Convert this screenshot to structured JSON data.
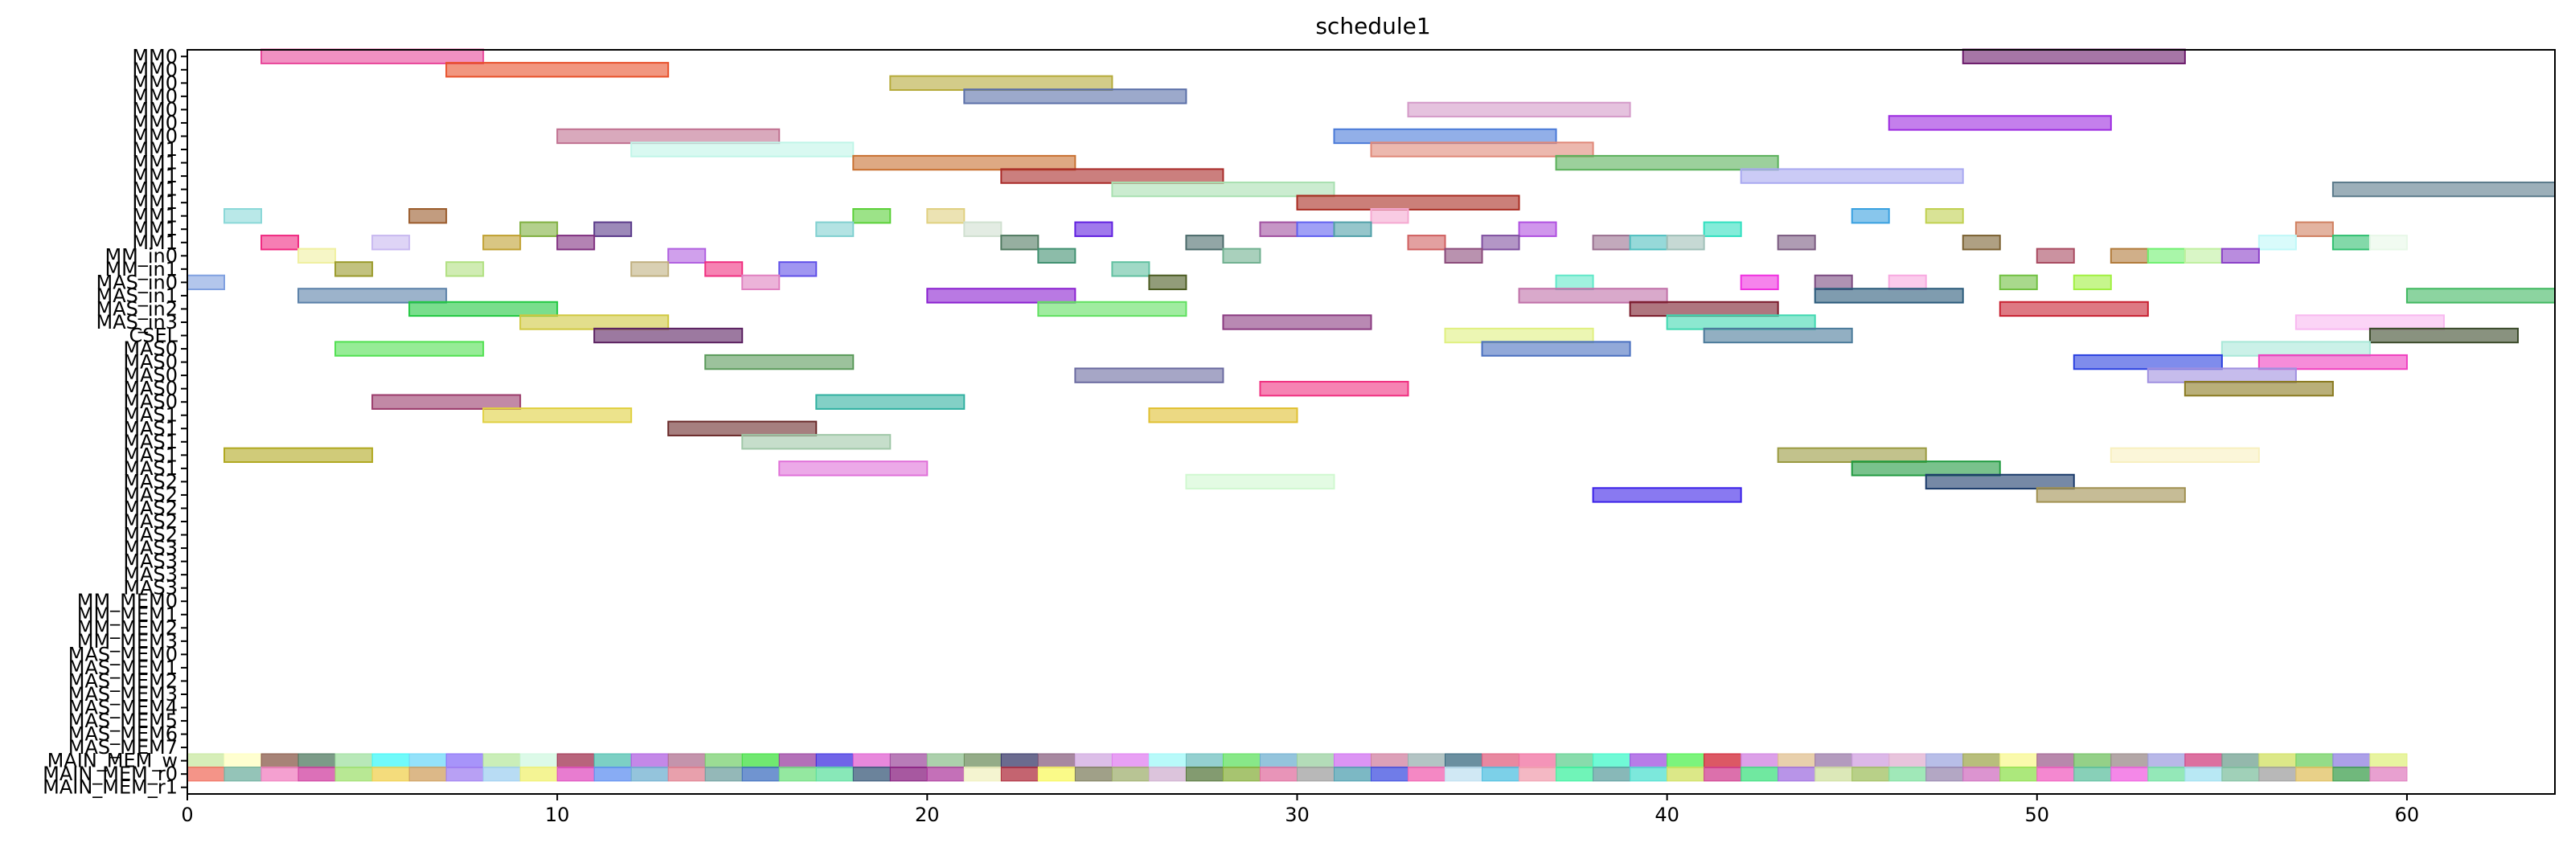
{
  "chart_data": {
    "type": "gantt",
    "title": "schedule1",
    "xlim": [
      0,
      64
    ],
    "x_ticks": [
      0,
      10,
      20,
      30,
      40,
      50,
      60
    ],
    "grid": false,
    "legend": "none",
    "rows": [
      "MM0",
      "MM0",
      "MM0",
      "MM0",
      "MM0",
      "MM0",
      "MM0",
      "MM1",
      "MM1",
      "MM1",
      "MM1",
      "MM1",
      "MM1",
      "MM1",
      "MM1",
      "MM_in0",
      "MM_in1",
      "MAS_in0",
      "MAS_in1",
      "MAS_in2",
      "MAS_in3",
      "CSEL",
      "MAS0",
      "MAS0",
      "MAS0",
      "MAS0",
      "MAS0",
      "MAS1",
      "MAS1",
      "MAS1",
      "MAS1",
      "MAS1",
      "MAS2",
      "MAS2",
      "MAS2",
      "MAS2",
      "MAS2",
      "MAS3",
      "MAS3",
      "MAS3",
      "MAS3",
      "MM_MEM0",
      "MM_MEM1",
      "MM_MEM2",
      "MM_MEM3",
      "MAS_MEM0",
      "MAS_MEM1",
      "MAS_MEM2",
      "MAS_MEM3",
      "MAS_MEM4",
      "MAS_MEM5",
      "MAS_MEM6",
      "MAS_MEM7",
      "MAIN_MEM_w",
      "MAIN_MEM_r0",
      "MAIN_MEM_r1"
    ],
    "bars": [
      {
        "row": 0,
        "start": 2,
        "end": 8,
        "color": "#e8479a"
      },
      {
        "row": 0,
        "start": 48,
        "end": 54,
        "color": "#6b1a6b"
      },
      {
        "row": 1,
        "start": 7,
        "end": 13,
        "color": "#e8502a"
      },
      {
        "row": 2,
        "start": 19,
        "end": 25,
        "color": "#b5aa3a"
      },
      {
        "row": 3,
        "start": 21,
        "end": 27,
        "color": "#5a6fa8"
      },
      {
        "row": 4,
        "start": 33,
        "end": 39,
        "color": "#d49ac8"
      },
      {
        "row": 5,
        "start": 46,
        "end": 52,
        "color": "#9c2ae0"
      },
      {
        "row": 6,
        "start": 10,
        "end": 16,
        "color": "#c07090"
      },
      {
        "row": 6,
        "start": 31,
        "end": 37,
        "color": "#4a7ad8"
      },
      {
        "row": 7,
        "start": 12,
        "end": 18,
        "color": "#c0f5e8"
      },
      {
        "row": 7,
        "start": 32,
        "end": 38,
        "color": "#e08878"
      },
      {
        "row": 8,
        "start": 18,
        "end": 24,
        "color": "#c87030"
      },
      {
        "row": 8,
        "start": 37,
        "end": 43,
        "color": "#5ab05a"
      },
      {
        "row": 9,
        "start": 22,
        "end": 28,
        "color": "#a82a28"
      },
      {
        "row": 9,
        "start": 42,
        "end": 48,
        "color": "#a8a8f0"
      },
      {
        "row": 10,
        "start": 25,
        "end": 31,
        "color": "#a8e0b0"
      },
      {
        "row": 10,
        "start": 58,
        "end": 64,
        "color": "#5a7a8a"
      },
      {
        "row": 11,
        "start": 30,
        "end": 36,
        "color": "#a82a20"
      },
      {
        "row": 12,
        "start": 1,
        "end": 2,
        "color": "#8ad8d8"
      },
      {
        "row": 12,
        "start": 6,
        "end": 7,
        "color": "#9a5a2a"
      },
      {
        "row": 12,
        "start": 18,
        "end": 19,
        "color": "#5ad038"
      },
      {
        "row": 12,
        "start": 20,
        "end": 21,
        "color": "#e0d080"
      },
      {
        "row": 12,
        "start": 32,
        "end": 33,
        "color": "#f5a8d0"
      },
      {
        "row": 12,
        "start": 45,
        "end": 46,
        "color": "#38a0e0"
      },
      {
        "row": 12,
        "start": 47,
        "end": 48,
        "color": "#c0d050"
      },
      {
        "row": 13,
        "start": 9,
        "end": 10,
        "color": "#80b040"
      },
      {
        "row": 13,
        "start": 11,
        "end": 12,
        "color": "#5a3a8a"
      },
      {
        "row": 13,
        "start": 17,
        "end": 18,
        "color": "#80d0d0"
      },
      {
        "row": 13,
        "start": 21,
        "end": 22,
        "color": "#d0e0d0"
      },
      {
        "row": 13,
        "start": 24,
        "end": 25,
        "color": "#6020e0"
      },
      {
        "row": 13,
        "start": 29,
        "end": 30,
        "color": "#a050a0"
      },
      {
        "row": 13,
        "start": 30,
        "end": 31,
        "color": "#6060f0"
      },
      {
        "row": 13,
        "start": 31,
        "end": 32,
        "color": "#50a0a8"
      },
      {
        "row": 13,
        "start": 36,
        "end": 37,
        "color": "#b050e0"
      },
      {
        "row": 13,
        "start": 41,
        "end": 42,
        "color": "#30e0c0"
      },
      {
        "row": 13,
        "start": 57,
        "end": 58,
        "color": "#d08060"
      },
      {
        "row": 14,
        "start": 2,
        "end": 3,
        "color": "#f02880"
      },
      {
        "row": 14,
        "start": 5,
        "end": 6,
        "color": "#c8b8f0"
      },
      {
        "row": 14,
        "start": 8,
        "end": 9,
        "color": "#c0a030"
      },
      {
        "row": 14,
        "start": 10,
        "end": 11,
        "color": "#803080"
      },
      {
        "row": 14,
        "start": 22,
        "end": 23,
        "color": "#507a60"
      },
      {
        "row": 14,
        "start": 27,
        "end": 28,
        "color": "#4a6a6a"
      },
      {
        "row": 14,
        "start": 33,
        "end": 34,
        "color": "#d06060"
      },
      {
        "row": 14,
        "start": 35,
        "end": 36,
        "color": "#8050a0"
      },
      {
        "row": 14,
        "start": 38,
        "end": 39,
        "color": "#9a7090"
      },
      {
        "row": 14,
        "start": 39,
        "end": 40,
        "color": "#50c0c0"
      },
      {
        "row": 14,
        "start": 40,
        "end": 41,
        "color": "#a0c0b8"
      },
      {
        "row": 14,
        "start": 43,
        "end": 44,
        "color": "#7a5a80"
      },
      {
        "row": 14,
        "start": 48,
        "end": 49,
        "color": "#7a6030"
      },
      {
        "row": 14,
        "start": 56,
        "end": 57,
        "color": "#c0f8f8"
      },
      {
        "row": 14,
        "start": 58,
        "end": 59,
        "color": "#30c070"
      },
      {
        "row": 14,
        "start": 59,
        "end": 60,
        "color": "#e8f8e8"
      },
      {
        "row": 15,
        "start": 3,
        "end": 4,
        "color": "#f0f0a0"
      },
      {
        "row": 15,
        "start": 13,
        "end": 14,
        "color": "#b060e0"
      },
      {
        "row": 15,
        "start": 23,
        "end": 24,
        "color": "#409070"
      },
      {
        "row": 15,
        "start": 28,
        "end": 29,
        "color": "#70b090"
      },
      {
        "row": 15,
        "start": 34,
        "end": 35,
        "color": "#8a4a7a"
      },
      {
        "row": 15,
        "start": 50,
        "end": 51,
        "color": "#a84a60"
      },
      {
        "row": 15,
        "start": 52,
        "end": 53,
        "color": "#b07a3a"
      },
      {
        "row": 15,
        "start": 53,
        "end": 54,
        "color": "#70f070"
      },
      {
        "row": 15,
        "start": 54,
        "end": 55,
        "color": "#c0f0a0"
      },
      {
        "row": 15,
        "start": 55,
        "end": 56,
        "color": "#8a40c8"
      },
      {
        "row": 16,
        "start": 4,
        "end": 5,
        "color": "#9a9a2a"
      },
      {
        "row": 16,
        "start": 7,
        "end": 8,
        "color": "#b0e080"
      },
      {
        "row": 16,
        "start": 12,
        "end": 13,
        "color": "#c0b080"
      },
      {
        "row": 16,
        "start": 14,
        "end": 15,
        "color": "#f03080"
      },
      {
        "row": 16,
        "start": 16,
        "end": 17,
        "color": "#6050e8"
      },
      {
        "row": 16,
        "start": 25,
        "end": 26,
        "color": "#60c0a0"
      },
      {
        "row": 17,
        "start": 0,
        "end": 1,
        "color": "#80a0e0"
      },
      {
        "row": 17,
        "start": 15,
        "end": 16,
        "color": "#e080c0"
      },
      {
        "row": 17,
        "start": 26,
        "end": 27,
        "color": "#4a5a20"
      },
      {
        "row": 17,
        "start": 37,
        "end": 38,
        "color": "#60e8c8"
      },
      {
        "row": 17,
        "start": 42,
        "end": 43,
        "color": "#f030e0"
      },
      {
        "row": 17,
        "start": 44,
        "end": 45,
        "color": "#7a4a80"
      },
      {
        "row": 17,
        "start": 46,
        "end": 47,
        "color": "#f8a8e0"
      },
      {
        "row": 17,
        "start": 49,
        "end": 50,
        "color": "#70c040"
      },
      {
        "row": 17,
        "start": 51,
        "end": 52,
        "color": "#a0f040"
      },
      {
        "row": 18,
        "start": 3,
        "end": 7,
        "color": "#5a80a8"
      },
      {
        "row": 18,
        "start": 20,
        "end": 24,
        "color": "#8a20d0"
      },
      {
        "row": 18,
        "start": 36,
        "end": 40,
        "color": "#c070a8"
      },
      {
        "row": 18,
        "start": 44,
        "end": 48,
        "color": "#2a5a7a"
      },
      {
        "row": 18,
        "start": 60,
        "end": 64,
        "color": "#40b860"
      },
      {
        "row": 19,
        "start": 6,
        "end": 10,
        "color": "#20c840"
      },
      {
        "row": 19,
        "start": 23,
        "end": 27,
        "color": "#60e060"
      },
      {
        "row": 19,
        "start": 39,
        "end": 43,
        "color": "#7a1a2a"
      },
      {
        "row": 19,
        "start": 49,
        "end": 53,
        "color": "#c82030"
      },
      {
        "row": 20,
        "start": 9,
        "end": 13,
        "color": "#d0c840"
      },
      {
        "row": 20,
        "start": 28,
        "end": 32,
        "color": "#8a3a80"
      },
      {
        "row": 20,
        "start": 40,
        "end": 44,
        "color": "#40d8b0"
      },
      {
        "row": 20,
        "start": 57,
        "end": 61,
        "color": "#f8b8f0"
      },
      {
        "row": 21,
        "start": 11,
        "end": 15,
        "color": "#5a2060"
      },
      {
        "row": 21,
        "start": 34,
        "end": 38,
        "color": "#e0f080"
      },
      {
        "row": 21,
        "start": 41,
        "end": 45,
        "color": "#4a7a9a"
      },
      {
        "row": 21,
        "start": 59,
        "end": 63,
        "color": "#3a4a2a"
      },
      {
        "row": 22,
        "start": 4,
        "end": 8,
        "color": "#50e050"
      },
      {
        "row": 22,
        "start": 35,
        "end": 39,
        "color": "#4a70c0"
      },
      {
        "row": 22,
        "start": 55,
        "end": 59,
        "color": "#a8e8d8"
      },
      {
        "row": 23,
        "start": 14,
        "end": 18,
        "color": "#5a9a5a"
      },
      {
        "row": 23,
        "start": 51,
        "end": 55,
        "color": "#2a40e0"
      },
      {
        "row": 23,
        "start": 56,
        "end": 60,
        "color": "#f040c0"
      },
      {
        "row": 24,
        "start": 24,
        "end": 28,
        "color": "#6a6aa0"
      },
      {
        "row": 24,
        "start": 53,
        "end": 57,
        "color": "#a090e0"
      },
      {
        "row": 25,
        "start": 29,
        "end": 33,
        "color": "#f03080"
      },
      {
        "row": 25,
        "start": 54,
        "end": 58,
        "color": "#8a7a20"
      },
      {
        "row": 26,
        "start": 5,
        "end": 9,
        "color": "#9a3a6a"
      },
      {
        "row": 26,
        "start": 17,
        "end": 21,
        "color": "#30b0a0"
      },
      {
        "row": 27,
        "start": 8,
        "end": 12,
        "color": "#e0d040"
      },
      {
        "row": 27,
        "start": 26,
        "end": 30,
        "color": "#e0c030"
      },
      {
        "row": 28,
        "start": 13,
        "end": 17,
        "color": "#6a2a2a"
      },
      {
        "row": 29,
        "start": 15,
        "end": 19,
        "color": "#a0c8a8"
      },
      {
        "row": 30,
        "start": 1,
        "end": 5,
        "color": "#b0a820"
      },
      {
        "row": 30,
        "start": 43,
        "end": 47,
        "color": "#9a9a40"
      },
      {
        "row": 30,
        "start": 52,
        "end": 56,
        "color": "#f8f0c0"
      },
      {
        "row": 31,
        "start": 16,
        "end": 20,
        "color": "#e070d8"
      },
      {
        "row": 31,
        "start": 45,
        "end": 49,
        "color": "#209a40"
      },
      {
        "row": 32,
        "start": 27,
        "end": 31,
        "color": "#d0f8d0"
      },
      {
        "row": 32,
        "start": 47,
        "end": 51,
        "color": "#1a3a6a"
      },
      {
        "row": 33,
        "start": 38,
        "end": 42,
        "color": "#3a20e8"
      },
      {
        "row": 33,
        "start": 50,
        "end": 54,
        "color": "#a09050"
      }
    ],
    "mem_w_colors": [
      "#c8e8a0",
      "#ffffc0",
      "#8a5a4a",
      "#507a60",
      "#a0e0a0",
      "#40f8f8",
      "#70d8f8",
      "#8a70f8",
      "#b8e8a0",
      "#d0f8e0",
      "#a03050",
      "#50c0b0",
      "#b060e0",
      "#b07090",
      "#7ad070",
      "#40e040",
      "#9a40a0",
      "#4030e0",
      "#e060d0",
      "#a050a0",
      "#90c090",
      "#709060",
      "#3a3a6a",
      "#8a6080",
      "#d0a8e0",
      "#e080f0",
      "#a0f8f8",
      "#70c0c0",
      "#60e060",
      "#70b0d0",
      "#9ad0a0",
      "#d070f0",
      "#d080a0",
      "#9ab0b0",
      "#3a6a80",
      "#e06080",
      "#f070a0",
      "#60d090",
      "#40f8c8",
      "#a050e0",
      "#50f050",
      "#d02030",
      "#d080e0",
      "#e0c090",
      "#9a7aa8",
      "#d0a0e0",
      "#e0b0d0",
      "#a0a8e0",
      "#a0a850",
      "#f8f890",
      "#a06090",
      "#70c060",
      "#9a8a8a",
      "#a0a0e0",
      "#d04080",
      "#70a090",
      "#d0e060",
      "#70d060",
      "#9080e0",
      "#e0f080"
    ],
    "mem_r0_colors": [
      "#f07060",
      "#70b0a0",
      "#f080c0",
      "#d040a0",
      "#a0e070",
      "#f0d050",
      "#d0a060",
      "#a080f0",
      "#a0d0f0",
      "#f0f070",
      "#e050c0",
      "#6090f0",
      "#70b0d0",
      "#e08090",
      "#70a0a0",
      "#4070c0",
      "#70e080",
      "#60e0a0",
      "#3a5a7a",
      "#8a2080",
      "#b040a0",
      "#f0f0c0",
      "#b03040",
      "#f8f860",
      "#808060",
      "#a0b070",
      "#d0b0d0",
      "#5a7a40",
      "#8ab040",
      "#e070a0",
      "#a0a0a0",
      "#50a0b0",
      "#4050e0",
      "#f060b0",
      "#c0e0f0",
      "#50c0e0",
      "#f0a0b0",
      "#40f0a0",
      "#60a0a0",
      "#50e0d0",
      "#d0e060",
      "#d04090",
      "#40e080",
      "#a070e0",
      "#d0e0a0",
      "#a0c060",
      "#80e0a0",
      "#9a8ab0",
      "#d070c0",
      "#90e050",
      "#f060c0",
      "#60c0a0",
      "#f060e0",
      "#70e0a0",
      "#a0e0f0",
      "#80c0a0",
      "#a0a0a0",
      "#e0c060",
      "#40a050",
      "#e080c0"
    ]
  }
}
